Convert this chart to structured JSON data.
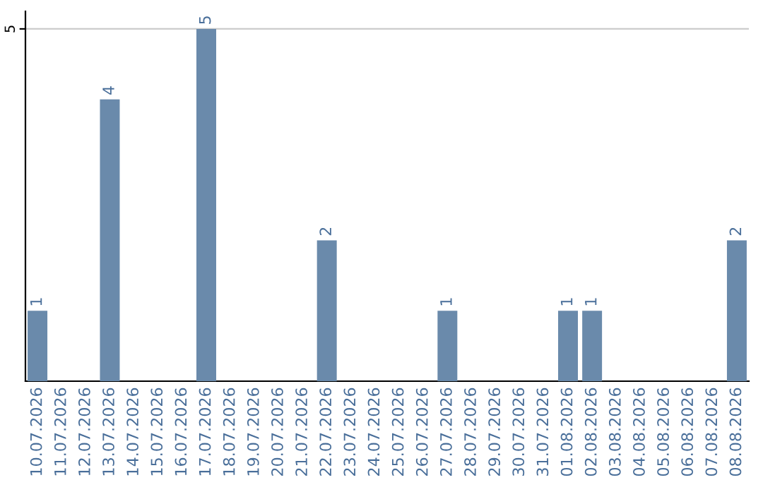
{
  "chart_data": {
    "type": "bar",
    "categories": [
      "10.07.2026",
      "11.07.2026",
      "12.07.2026",
      "13.07.2026",
      "14.07.2026",
      "15.07.2026",
      "16.07.2026",
      "17.07.2026",
      "18.07.2026",
      "19.07.2026",
      "20.07.2026",
      "21.07.2026",
      "22.07.2026",
      "23.07.2026",
      "24.07.2026",
      "25.07.2026",
      "26.07.2026",
      "27.07.2026",
      "28.07.2026",
      "29.07.2026",
      "30.07.2026",
      "31.07.2026",
      "01.08.2026",
      "02.08.2026",
      "03.08.2026",
      "04.08.2026",
      "05.08.2026",
      "06.08.2026",
      "07.08.2026",
      "08.08.2026"
    ],
    "values": [
      1,
      0,
      0,
      4,
      0,
      0,
      0,
      5,
      0,
      0,
      0,
      0,
      2,
      0,
      0,
      0,
      0,
      1,
      0,
      0,
      0,
      0,
      1,
      1,
      0,
      0,
      0,
      0,
      0,
      2
    ],
    "color": "#6a8aab",
    "ylim": [
      0,
      5.25
    ],
    "yticks": [
      5
    ],
    "value_labels": [
      "1",
      null,
      null,
      "4",
      null,
      null,
      null,
      "5",
      null,
      null,
      null,
      null,
      "2",
      null,
      null,
      null,
      null,
      "1",
      null,
      null,
      null,
      null,
      "1",
      "1",
      null,
      null,
      null,
      null,
      null,
      "2"
    ],
    "grid": "y",
    "legend": false
  }
}
